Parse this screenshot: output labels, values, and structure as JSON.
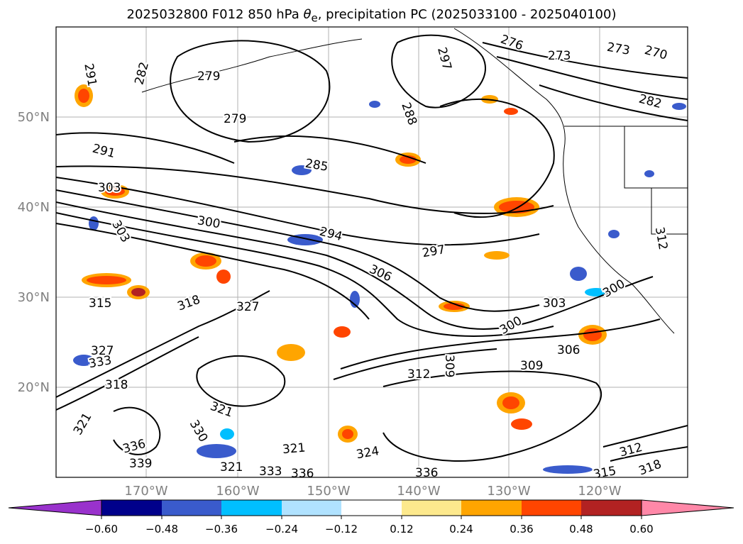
{
  "title": {
    "prefix": "2025032800 F012 850 hPa ",
    "theta": "θ",
    "subscript": "e",
    "suffix": ", precipitation PC (2025033100 - 2025040100)"
  },
  "map": {
    "lon_ticks": [
      "170°W",
      "160°W",
      "150°W",
      "140°W",
      "130°W",
      "120°W"
    ],
    "lat_ticks": [
      "50°N",
      "40°N",
      "30°N",
      "20°N"
    ],
    "colors": {
      "frame": "#000000",
      "grid": "#b0b0b0",
      "tick_label": "#808080",
      "contour": "#000000"
    }
  },
  "contour_labels": [
    {
      "text": "291"
    },
    {
      "text": "282"
    },
    {
      "text": "279"
    },
    {
      "text": "279"
    },
    {
      "text": "276"
    },
    {
      "text": "273"
    },
    {
      "text": "273"
    },
    {
      "text": "270"
    },
    {
      "text": "297"
    },
    {
      "text": "288"
    },
    {
      "text": "285"
    },
    {
      "text": "282"
    },
    {
      "text": "291"
    },
    {
      "text": "303"
    },
    {
      "text": "303"
    },
    {
      "text": "300"
    },
    {
      "text": "294"
    },
    {
      "text": "297"
    },
    {
      "text": "306"
    },
    {
      "text": "312"
    },
    {
      "text": "315"
    },
    {
      "text": "318"
    },
    {
      "text": "327"
    },
    {
      "text": "300"
    },
    {
      "text": "303"
    },
    {
      "text": "300"
    },
    {
      "text": "306"
    },
    {
      "text": "309"
    },
    {
      "text": "312"
    },
    {
      "text": "309"
    },
    {
      "text": "327"
    },
    {
      "text": "333"
    },
    {
      "text": "318"
    },
    {
      "text": "321"
    },
    {
      "text": "321"
    },
    {
      "text": "330"
    },
    {
      "text": "336"
    },
    {
      "text": "339"
    },
    {
      "text": "321"
    },
    {
      "text": "333"
    },
    {
      "text": "336"
    },
    {
      "text": "324"
    },
    {
      "text": "321"
    },
    {
      "text": "336"
    },
    {
      "text": "312"
    },
    {
      "text": "315"
    },
    {
      "text": "318"
    }
  ],
  "colorbar": {
    "colors": [
      "#9932cc",
      "#00008b",
      "#3a5bcc",
      "#00bfff",
      "#b0e2ff",
      "#ffffff",
      "#fde98d",
      "#ffa500",
      "#ff4500",
      "#b22222",
      "#ff88a8"
    ],
    "tick_labels": [
      "−0.60",
      "−0.48",
      "−0.36",
      "−0.24",
      "−0.12",
      "0.12",
      "0.24",
      "0.36",
      "0.48",
      "0.60"
    ]
  }
}
